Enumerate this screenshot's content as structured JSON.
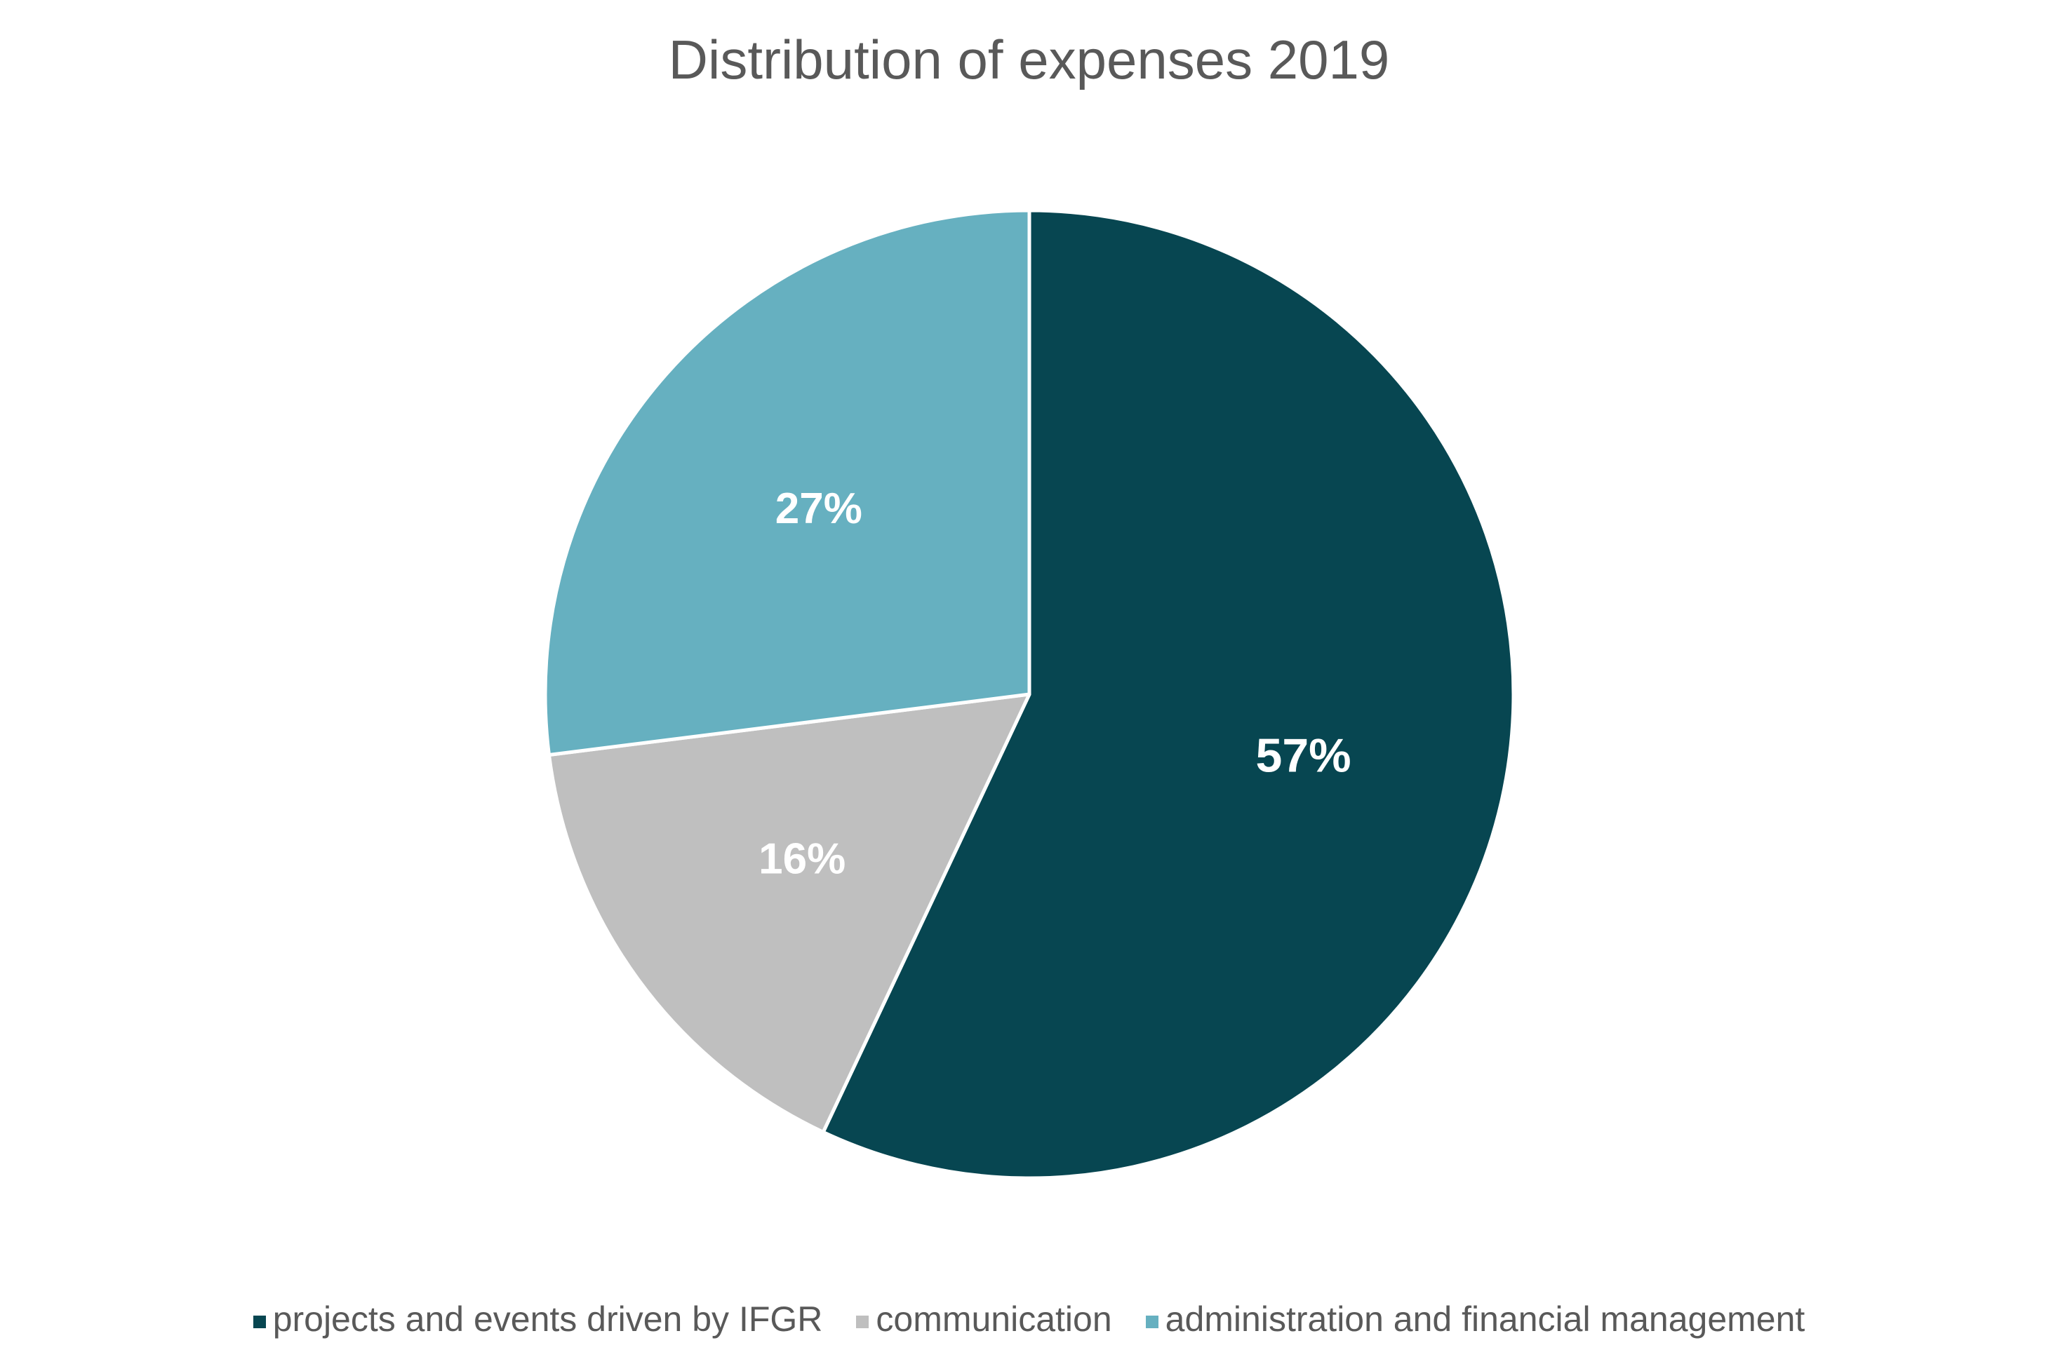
{
  "chart_data": {
    "type": "pie",
    "title": "Distribution of expenses 2019",
    "categories": [
      "projects and events driven by IFGR",
      "communication",
      "administration and financial management"
    ],
    "values": [
      57,
      16,
      27
    ],
    "labels": [
      "57%",
      "16%",
      "27%"
    ],
    "colors": [
      "#074651",
      "#BFBFBF",
      "#66B0C0"
    ],
    "start_angle": "12 o'clock",
    "direction": "clockwise",
    "legend_position": "bottom",
    "unit": "percent"
  }
}
